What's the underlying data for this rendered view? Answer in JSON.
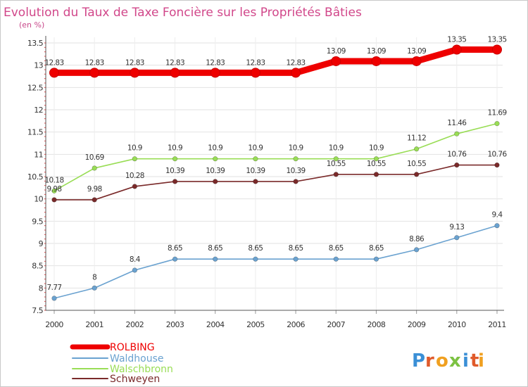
{
  "chart_data": {
    "type": "line",
    "title": "Evolution du Taux de Taxe Foncière sur les Propriétés Bâties",
    "subtitle": "(en %)",
    "xlabel": "",
    "ylabel": "(en %)",
    "ylim": [
      7.5,
      13.5
    ],
    "grid": true,
    "legend_position": "bottom-left",
    "x": [
      "2000",
      "2001",
      "2002",
      "2003",
      "2004",
      "2005",
      "2006",
      "2007",
      "2008",
      "2009",
      "2010",
      "2011"
    ],
    "y_ticks": [
      "7.5",
      "8",
      "8.5",
      "9",
      "9.5",
      "10",
      "10.5",
      "11",
      "11.5",
      "12",
      "12.5",
      "13",
      "13.5"
    ],
    "series": [
      {
        "name": "ROLBING",
        "color": "#ee0000",
        "values": [
          12.83,
          12.83,
          12.83,
          12.83,
          12.83,
          12.83,
          12.83,
          13.09,
          13.09,
          13.09,
          13.35,
          13.35
        ],
        "labels": [
          "12.83",
          "12.83",
          "12.83",
          "12.83",
          "12.83",
          "12.83",
          "12.83",
          "13.09",
          "13.09",
          "13.09",
          "13.35",
          "13.35"
        ]
      },
      {
        "name": "Waldhouse",
        "color": "#6aa2d0",
        "values": [
          7.77,
          8,
          8.4,
          8.65,
          8.65,
          8.65,
          8.65,
          8.65,
          8.65,
          8.86,
          9.13,
          9.4
        ],
        "labels": [
          "7.77",
          "8",
          "8.4",
          "8.65",
          "8.65",
          "8.65",
          "8.65",
          "8.65",
          "8.65",
          "8.86",
          "9.13",
          "9.4"
        ]
      },
      {
        "name": "Walschbronn",
        "color": "#99dd55",
        "values": [
          10.18,
          10.69,
          10.9,
          10.9,
          10.9,
          10.9,
          10.9,
          10.9,
          10.9,
          11.12,
          11.46,
          11.69
        ],
        "labels": [
          "10.18",
          "10.69",
          "10.9",
          "10.9",
          "10.9",
          "10.9",
          "10.9",
          "10.9",
          "10.9",
          "11.12",
          "11.46",
          "11.69"
        ]
      },
      {
        "name": "Schweyen",
        "color": "#7a2a2a",
        "values": [
          9.98,
          9.98,
          10.28,
          10.39,
          10.39,
          10.39,
          10.39,
          10.55,
          10.55,
          10.55,
          10.76,
          10.76
        ],
        "labels": [
          "9.98",
          "9.98",
          "10.28",
          "10.39",
          "10.39",
          "10.39",
          "10.39",
          "10.55",
          "10.55",
          "10.55",
          "10.76",
          "10.76"
        ]
      }
    ]
  },
  "logo": {
    "text": "Proxiti",
    "colors": [
      "#3a8fd6",
      "#e05a2a",
      "#f0a020",
      "#7cc242",
      "#3a8fd6",
      "#e05a2a",
      "#f0a020"
    ]
  }
}
